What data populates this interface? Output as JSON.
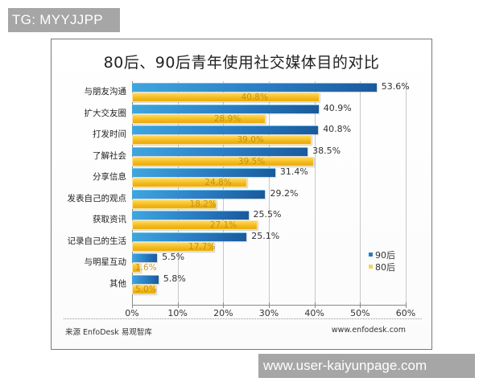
{
  "overlay": {
    "tg_badge": "TG: MYYJJPP",
    "watermark": "www.user-kaiyunpage.com"
  },
  "chart": {
    "title": "80后、90后青年使用社交媒体目的对比",
    "source": "来源   EnfoDesk 易观智库",
    "source_url": "www.enfodesk.com",
    "legend": [
      "90后",
      "80后"
    ],
    "x_ticks": [
      "0%",
      "10%",
      "20%",
      "30%",
      "40%",
      "50%",
      "60%"
    ],
    "colors": {
      "90后": "#2a7cc2",
      "80后": "#f3b81a"
    }
  },
  "chart_data": {
    "type": "bar",
    "orientation": "horizontal",
    "title": "80后、90后青年使用社交媒体目的对比",
    "categories": [
      "与朋友沟通",
      "扩大交友圈",
      "打发时间",
      "了解社会",
      "分享信息",
      "发表自己的观点",
      "获取资讯",
      "记录自己的生活",
      "与明星互动",
      "其他"
    ],
    "series": [
      {
        "name": "90后",
        "color": "#2a7cc2",
        "values": [
          53.6,
          40.9,
          40.8,
          38.5,
          31.4,
          29.2,
          25.5,
          25.1,
          5.5,
          5.8
        ],
        "labels": [
          "53.6%",
          "40.9%",
          "40.8%",
          "38.5%",
          "31.4%",
          "29.2%",
          "25.5%",
          "25.1%",
          "5.5%",
          "5.8%"
        ]
      },
      {
        "name": "80后",
        "color": "#f3b81a",
        "values": [
          40.8,
          28.9,
          39.0,
          39.5,
          24.8,
          18.2,
          27.1,
          17.7,
          1.6,
          5.0
        ],
        "labels": [
          "40.8%",
          "28.9%",
          "39.0%",
          "39.5%",
          "24.8%",
          "18.2%",
          "27.1%",
          "17.7%",
          "1.6%",
          "5.0%"
        ]
      }
    ],
    "xlabel": "",
    "ylabel": "",
    "xlim": [
      0,
      60
    ],
    "x_ticks": [
      "0%",
      "10%",
      "20%",
      "30%",
      "40%",
      "50%",
      "60%"
    ],
    "grid": true,
    "legend_position": "lower right",
    "source": "来源 EnfoDesk 易观智库",
    "source_url": "www.enfodesk.com"
  }
}
